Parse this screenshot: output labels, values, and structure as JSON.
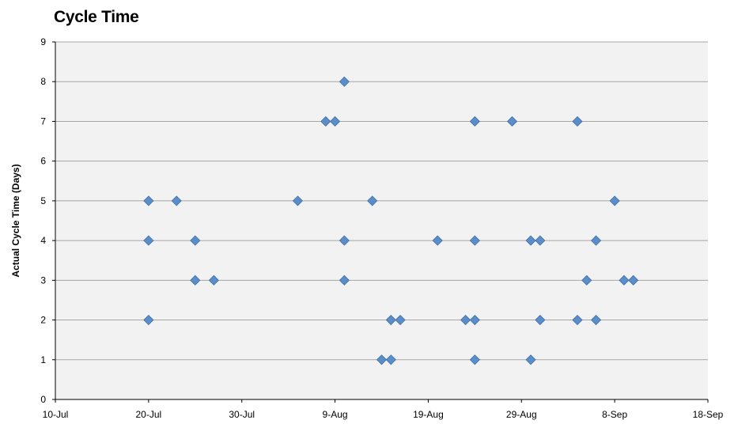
{
  "title": "Cycle Time",
  "chart_data": {
    "type": "scatter",
    "title": "Cycle Time",
    "xlabel": "",
    "ylabel": "Actual Cycle Time (Days)",
    "xlim": [
      "10-Jul",
      "18-Sep"
    ],
    "ylim": [
      0,
      9
    ],
    "x_ticks": [
      "10-Jul",
      "20-Jul",
      "30-Jul",
      "9-Aug",
      "19-Aug",
      "29-Aug",
      "8-Sep",
      "18-Sep"
    ],
    "y_ticks": [
      0,
      1,
      2,
      3,
      4,
      5,
      6,
      7,
      8,
      9
    ],
    "grid": true,
    "marker": "diamond",
    "colors": {
      "marker": "#5b8ec8",
      "marker_edge": "#3f6fa8",
      "plot_bg": "#f2f2f2",
      "grid": "#a6a6a6"
    },
    "points": [
      {
        "x": "20-Jul",
        "y": 5
      },
      {
        "x": "20-Jul",
        "y": 4
      },
      {
        "x": "20-Jul",
        "y": 2
      },
      {
        "x": "23-Jul",
        "y": 5
      },
      {
        "x": "25-Jul",
        "y": 4
      },
      {
        "x": "25-Jul",
        "y": 3
      },
      {
        "x": "27-Jul",
        "y": 3
      },
      {
        "x": "5-Aug",
        "y": 5
      },
      {
        "x": "8-Aug",
        "y": 7
      },
      {
        "x": "9-Aug",
        "y": 7
      },
      {
        "x": "10-Aug",
        "y": 8
      },
      {
        "x": "10-Aug",
        "y": 4
      },
      {
        "x": "10-Aug",
        "y": 3
      },
      {
        "x": "13-Aug",
        "y": 5
      },
      {
        "x": "14-Aug",
        "y": 1
      },
      {
        "x": "15-Aug",
        "y": 2
      },
      {
        "x": "15-Aug",
        "y": 1
      },
      {
        "x": "16-Aug",
        "y": 2
      },
      {
        "x": "20-Aug",
        "y": 4
      },
      {
        "x": "23-Aug",
        "y": 2
      },
      {
        "x": "24-Aug",
        "y": 7
      },
      {
        "x": "24-Aug",
        "y": 4
      },
      {
        "x": "24-Aug",
        "y": 2
      },
      {
        "x": "24-Aug",
        "y": 1
      },
      {
        "x": "28-Aug",
        "y": 7
      },
      {
        "x": "30-Aug",
        "y": 4
      },
      {
        "x": "30-Aug",
        "y": 1
      },
      {
        "x": "31-Aug",
        "y": 4
      },
      {
        "x": "31-Aug",
        "y": 2
      },
      {
        "x": "4-Sep",
        "y": 7
      },
      {
        "x": "4-Sep",
        "y": 2
      },
      {
        "x": "5-Sep",
        "y": 3
      },
      {
        "x": "6-Sep",
        "y": 4
      },
      {
        "x": "6-Sep",
        "y": 2
      },
      {
        "x": "8-Sep",
        "y": 5
      },
      {
        "x": "9-Sep",
        "y": 3
      },
      {
        "x": "10-Sep",
        "y": 3
      }
    ]
  }
}
